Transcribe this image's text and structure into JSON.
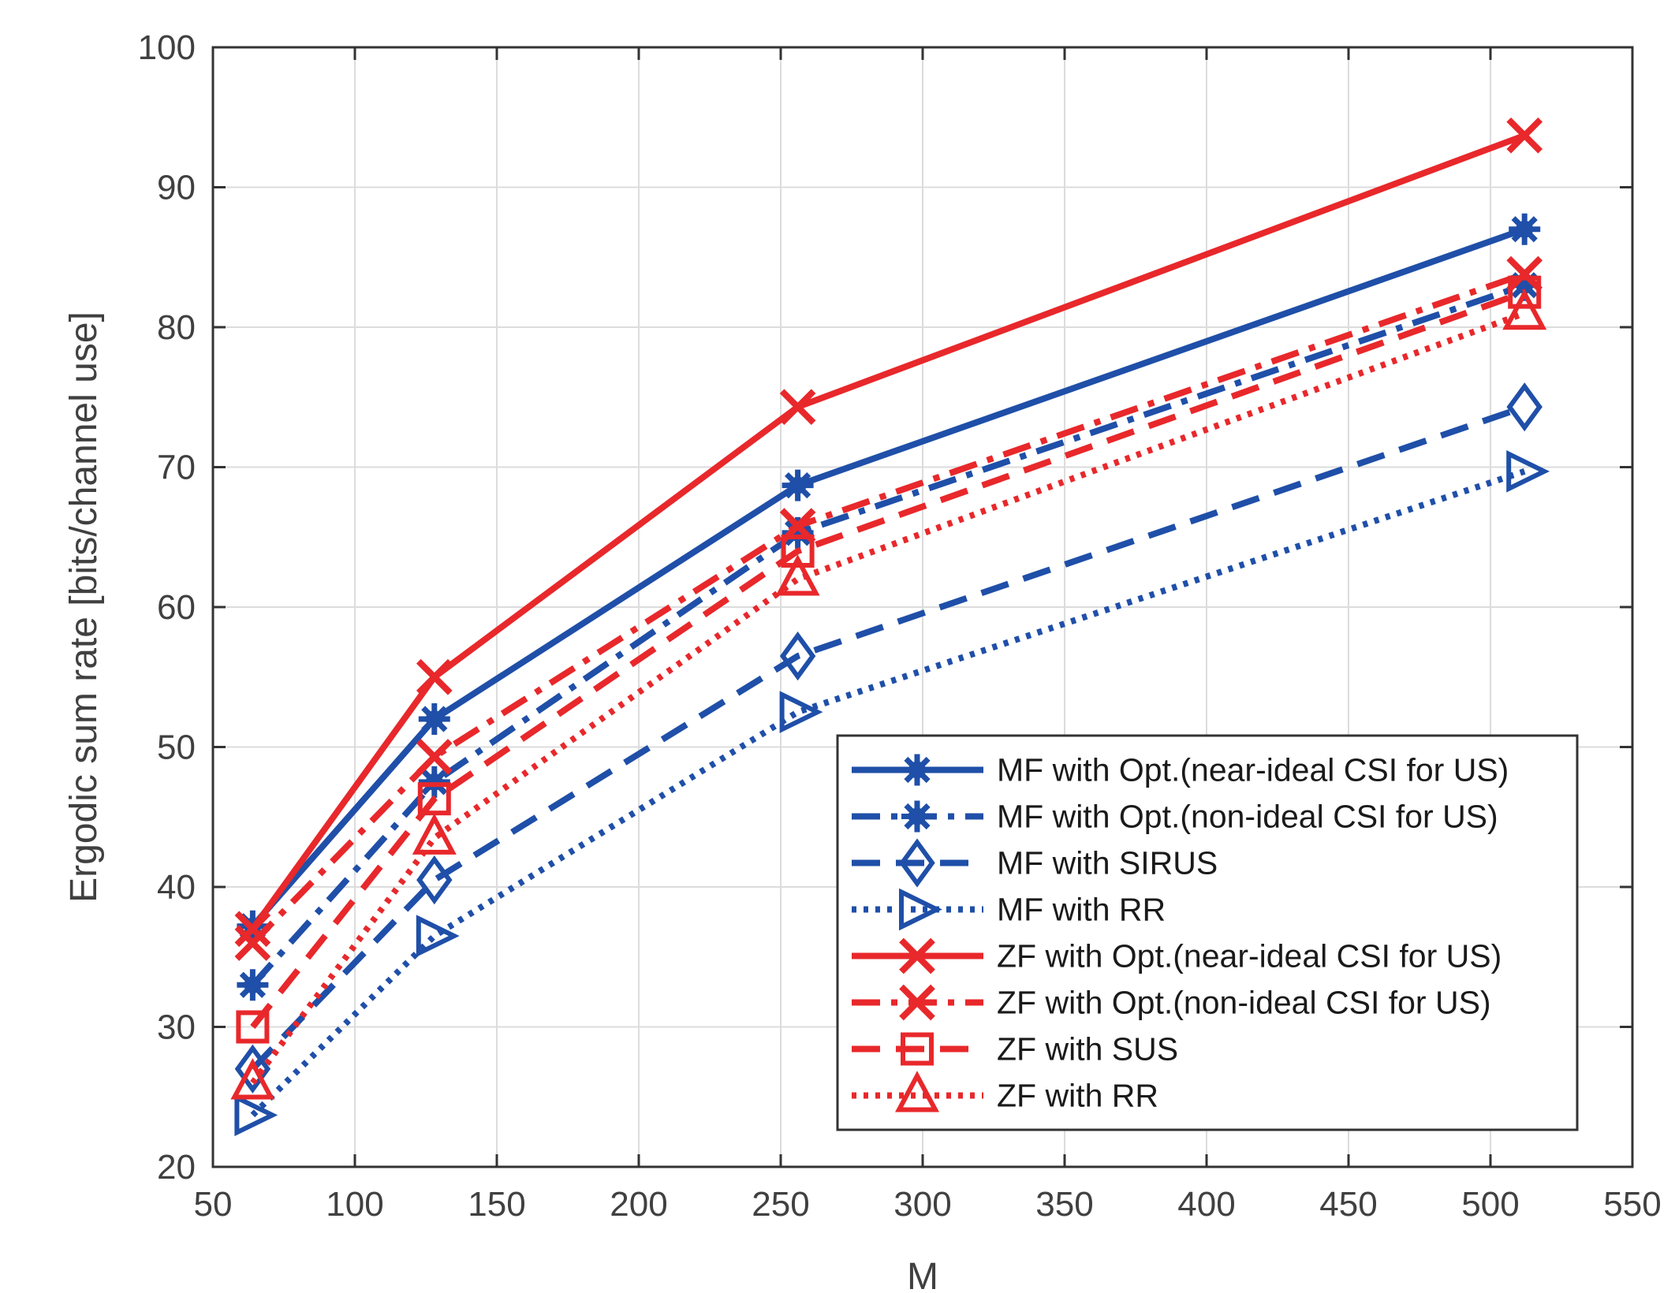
{
  "chart_data": {
    "type": "line",
    "title": "",
    "xlabel": "M",
    "ylabel": "Ergodic sum rate [bits/channel use]",
    "xlim": [
      50,
      550
    ],
    "ylim": [
      20,
      100
    ],
    "xticks": [
      50,
      100,
      150,
      200,
      250,
      300,
      350,
      400,
      450,
      500,
      550
    ],
    "yticks": [
      20,
      30,
      40,
      50,
      60,
      70,
      80,
      90,
      100
    ],
    "grid": true,
    "legend_position": "bottom-right",
    "x": [
      64,
      128,
      256,
      512
    ],
    "series": [
      {
        "name": "MF with Opt.(near-ideal CSI for US)",
        "color": "#1f4fa8",
        "line": "solid",
        "marker": "asterisk",
        "values": [
          37.2,
          52.0,
          68.7,
          87.0
        ]
      },
      {
        "name": "MF with Opt.(non-ideal CSI for US)",
        "color": "#1f4fa8",
        "line": "dashdot",
        "marker": "asterisk",
        "values": [
          33.0,
          47.5,
          65.3,
          83.0
        ]
      },
      {
        "name": "MF with SIRUS",
        "color": "#1f4fa8",
        "line": "dashed",
        "marker": "diamond",
        "values": [
          27.0,
          40.5,
          56.5,
          74.3
        ]
      },
      {
        "name": "MF with RR",
        "color": "#1f4fa8",
        "line": "dotted",
        "marker": "triangle-right",
        "values": [
          23.7,
          36.5,
          52.5,
          69.7
        ]
      },
      {
        "name": "ZF with Opt.(near-ideal CSI for US)",
        "color": "#e8282b",
        "line": "solid",
        "marker": "x",
        "values": [
          37.0,
          55.0,
          74.3,
          93.7
        ]
      },
      {
        "name": "ZF with Opt.(non-ideal CSI for US)",
        "color": "#e8282b",
        "line": "dashdot",
        "marker": "x",
        "values": [
          36.0,
          49.3,
          65.8,
          83.8
        ]
      },
      {
        "name": "ZF with SUS",
        "color": "#e8282b",
        "line": "dashed",
        "marker": "square",
        "values": [
          30.0,
          46.3,
          64.0,
          82.5
        ]
      },
      {
        "name": "ZF with RR",
        "color": "#e8282b",
        "line": "dotted",
        "marker": "triangle-up",
        "values": [
          26.0,
          43.5,
          62.0,
          81.0
        ]
      }
    ]
  }
}
